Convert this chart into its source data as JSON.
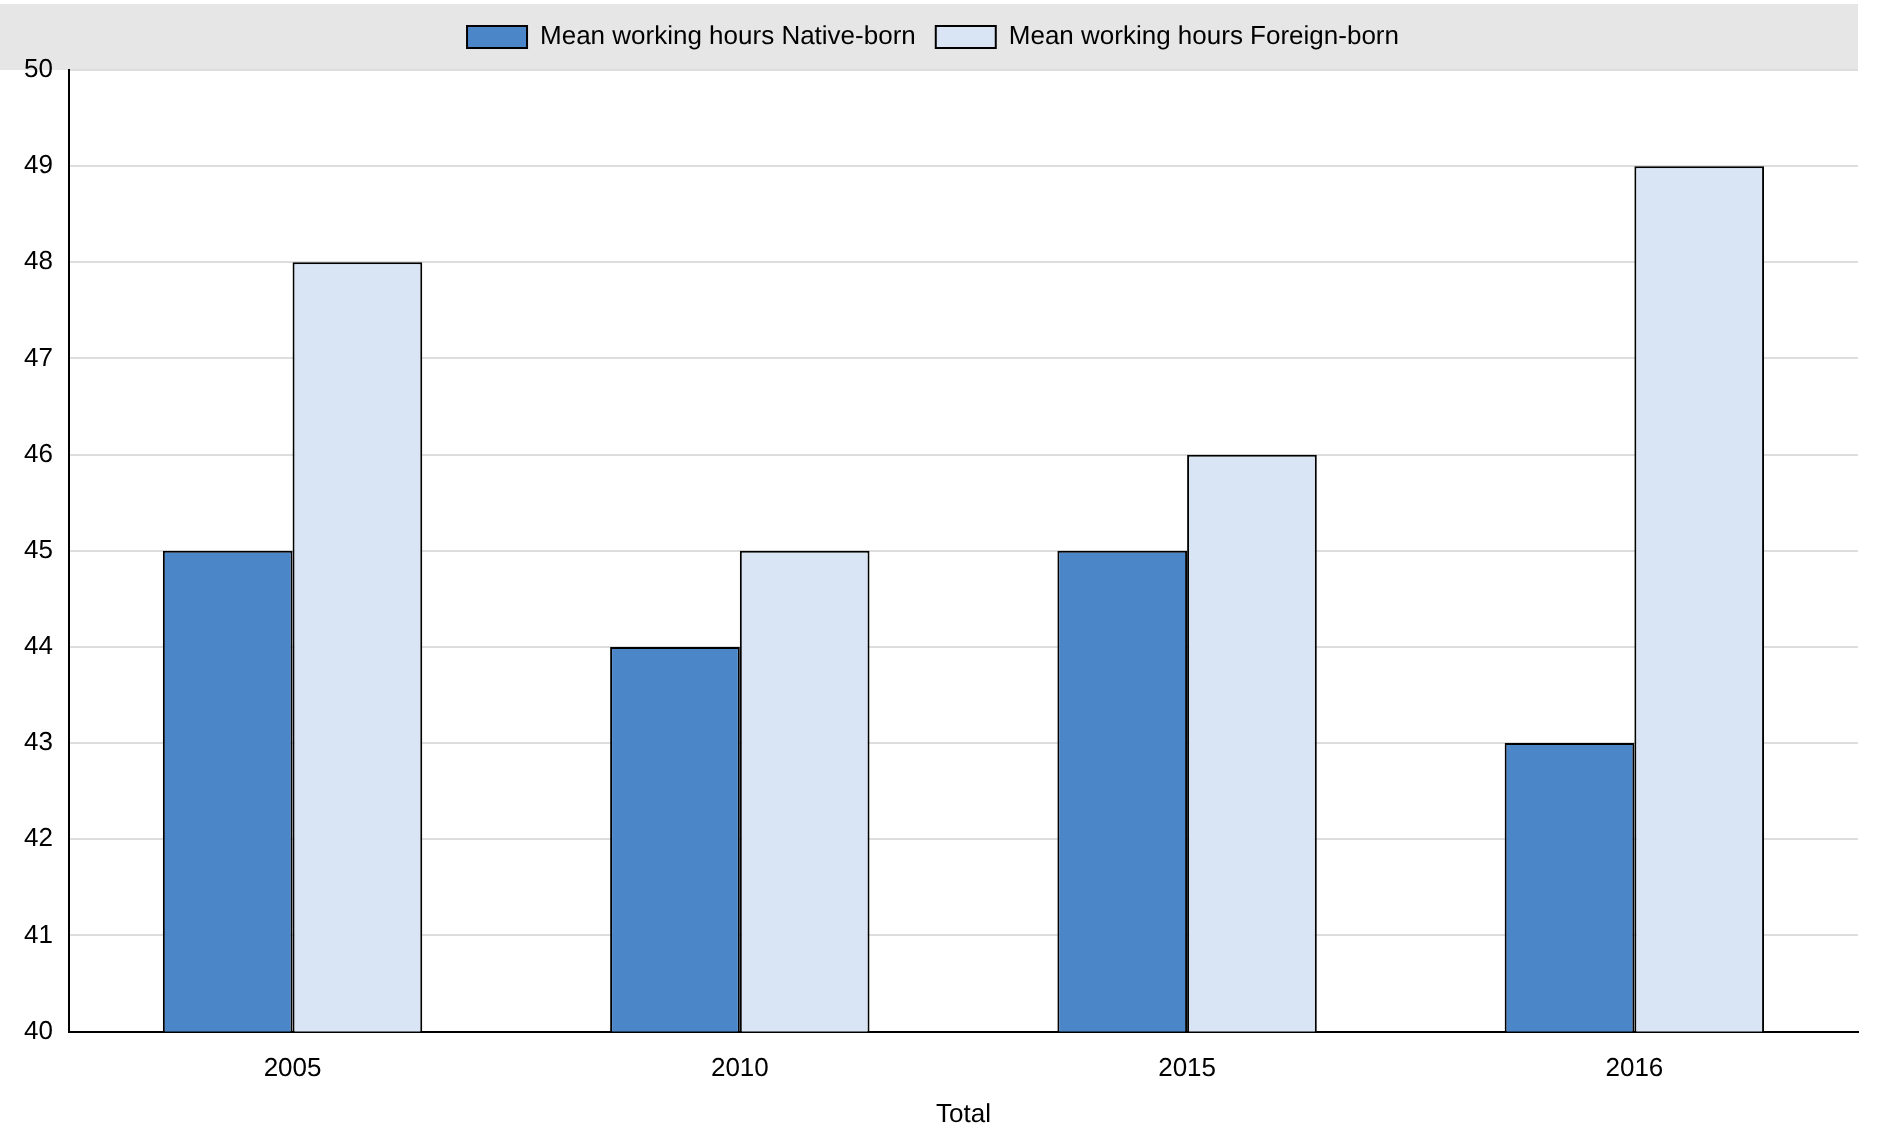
{
  "chart_data": {
    "type": "bar",
    "xlabel": "Total",
    "categories": [
      "2005",
      "2010",
      "2015",
      "2016"
    ],
    "series": [
      {
        "name": "Mean working hours Native-born",
        "color": "#4a86c8",
        "values": [
          45,
          44,
          45,
          43
        ]
      },
      {
        "name": "Mean working hours Foreign-born",
        "color": "#d9e5f4",
        "values": [
          48,
          45,
          46,
          49
        ]
      }
    ],
    "ylim": [
      40,
      50
    ],
    "yticks": [
      40,
      41,
      42,
      43,
      44,
      45,
      46,
      47,
      48,
      49,
      50
    ],
    "grid": "y",
    "legend": "top"
  }
}
